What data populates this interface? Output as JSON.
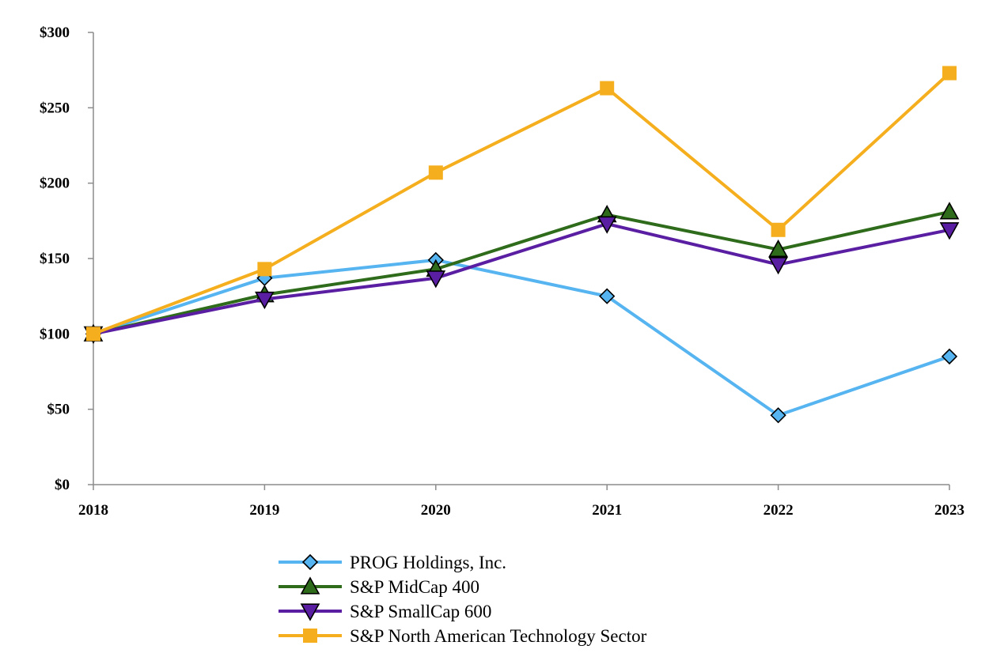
{
  "chart_data": {
    "type": "line",
    "title": "",
    "xlabel": "",
    "ylabel": "",
    "x": [
      "2018",
      "2019",
      "2020",
      "2021",
      "2022",
      "2023"
    ],
    "ylim": [
      0,
      300
    ],
    "yticks": [
      0,
      50,
      100,
      150,
      200,
      250,
      300
    ],
    "ytick_labels": [
      "$0",
      "$50",
      "$100",
      "$150",
      "$200",
      "$250",
      "$300"
    ],
    "grid": false,
    "legend_position": "bottom",
    "series": [
      {
        "name": "PROG Holdings, Inc.",
        "color": "#56B4F0",
        "marker": "diamond",
        "values": [
          100,
          137,
          149,
          125,
          46,
          85
        ]
      },
      {
        "name": "S&P MidCap 400",
        "color": "#2E6B1A",
        "marker": "triangle-up",
        "values": [
          100,
          126,
          143,
          179,
          156,
          181
        ]
      },
      {
        "name": "S&P SmallCap 600",
        "color": "#5A1EA3",
        "marker": "triangle-down",
        "values": [
          100,
          123,
          137,
          173,
          146,
          169
        ]
      },
      {
        "name": "S&P North American Technology Sector",
        "color": "#F5AF1E",
        "marker": "square",
        "values": [
          100,
          143,
          207,
          263,
          169,
          273
        ]
      }
    ]
  }
}
